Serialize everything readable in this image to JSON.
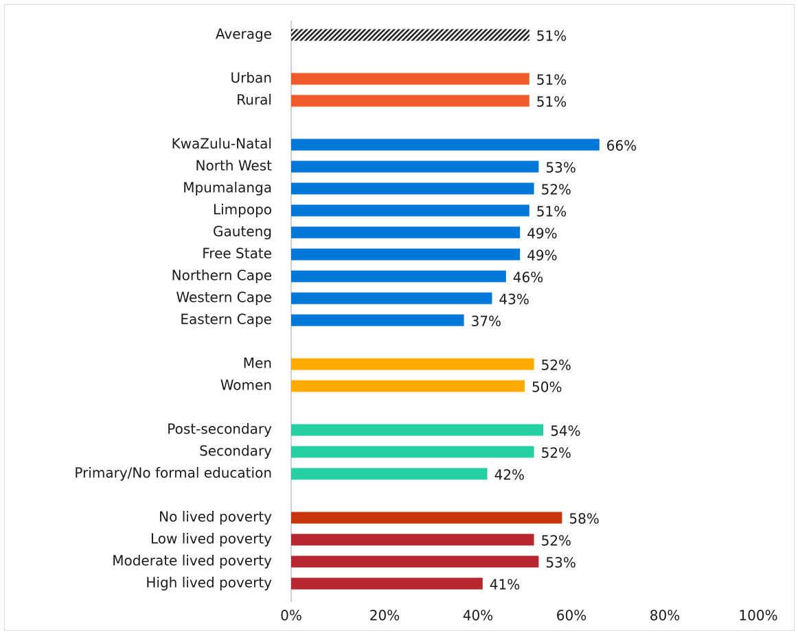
{
  "chart_data": {
    "type": "barh",
    "categories": [
      "Average",
      null,
      "Urban",
      "Rural",
      null,
      "KwaZulu-Natal",
      "North West",
      "Mpumalanga",
      "Limpopo",
      "Gauteng",
      "Free State",
      "Northern Cape",
      "Western Cape",
      "Eastern Cape",
      null,
      "Men",
      "Women",
      null,
      "Post-secondary",
      "Secondary",
      "Primary/No formal education",
      null,
      "No lived poverty",
      "Low lived poverty",
      "Moderate lived poverty",
      "High lived poverty"
    ],
    "values": [
      51,
      null,
      51,
      51,
      null,
      66,
      53,
      52,
      51,
      49,
      49,
      46,
      43,
      37,
      null,
      52,
      50,
      null,
      54,
      52,
      42,
      null,
      58,
      52,
      53,
      41
    ],
    "value_labels": [
      "51%",
      null,
      "51%",
      "51%",
      null,
      "66%",
      "53%",
      "52%",
      "51%",
      "49%",
      "49%",
      "46%",
      "43%",
      "37%",
      null,
      "52%",
      "50%",
      null,
      "54%",
      "52%",
      "42%",
      null,
      "58%",
      "52%",
      "53%",
      "41%"
    ],
    "colors": [
      "#222222",
      null,
      "#f15a29",
      "#f15a29",
      null,
      "#0078d7",
      "#0078d7",
      "#0078d7",
      "#0078d7",
      "#0078d7",
      "#0078d7",
      "#0078d7",
      "#0078d7",
      "#0078d7",
      null,
      "#ffaa00",
      "#ffaa00",
      null,
      "#26d0a0",
      "#26d0a0",
      "#26d0a0",
      null,
      "#c8350d",
      "#b7282e",
      "#b7282e",
      "#b7282e"
    ],
    "patterns": [
      "hatch",
      null,
      null,
      null,
      null,
      null,
      null,
      null,
      null,
      null,
      null,
      null,
      null,
      null,
      null,
      null,
      null,
      null,
      null,
      null,
      null,
      null,
      null,
      null,
      null,
      null
    ],
    "xlim": [
      0,
      100
    ],
    "xticks": [
      {
        "value": 0,
        "label": "0%"
      },
      {
        "value": 20,
        "label": "20%"
      },
      {
        "value": 40,
        "label": "40%"
      },
      {
        "value": 60,
        "label": "60%"
      },
      {
        "value": 80,
        "label": "80%"
      },
      {
        "value": 100,
        "label": "100%"
      }
    ],
    "grid": false
  }
}
